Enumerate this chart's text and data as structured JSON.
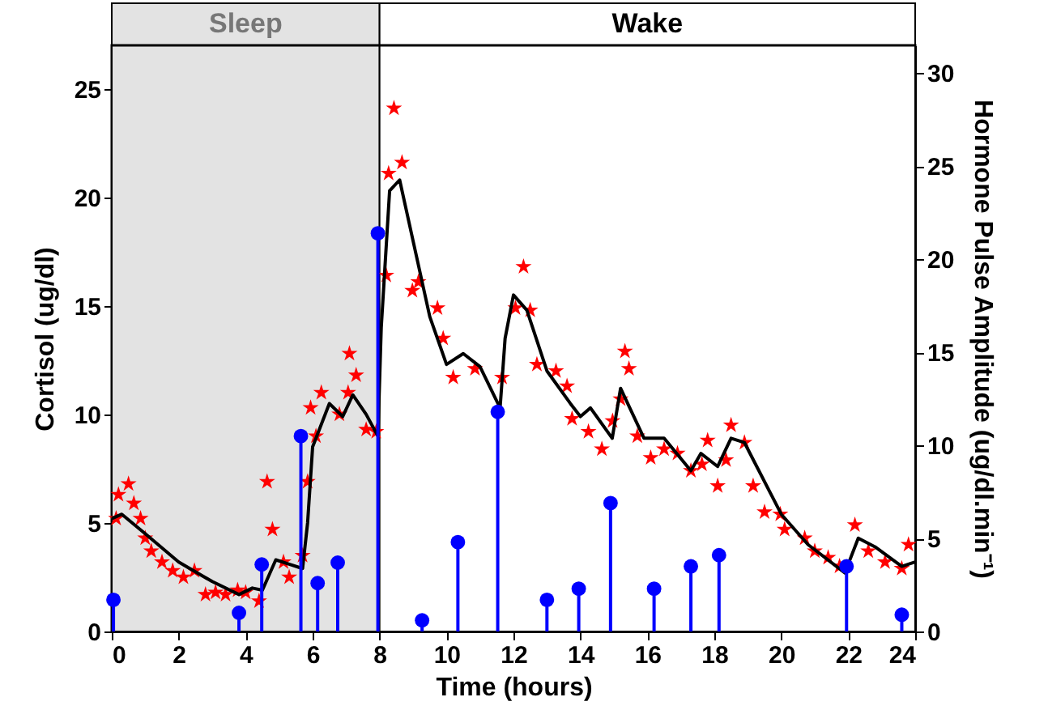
{
  "chart_data": {
    "type": "scatter",
    "xlabel": "Time (hours)",
    "ylabel": "Cortisol (ug/dl)",
    "y2label": "Hormone Pulse Amplitude (ug/dl.min⁻¹)",
    "xlim": [
      0,
      24
    ],
    "xticks": [
      0,
      2,
      4,
      6,
      8,
      10,
      12,
      14,
      16,
      18,
      20,
      22,
      24
    ],
    "ylim": [
      0,
      27
    ],
    "yticks": [
      0,
      5,
      10,
      15,
      20,
      25
    ],
    "y2lim": [
      0,
      31.5
    ],
    "y2ticks": [
      0,
      5,
      10,
      15,
      20,
      25,
      30
    ],
    "bands": [
      {
        "axis": "x",
        "from": 0,
        "to": 8,
        "label": "Sleep",
        "color": "#e3e3e3"
      },
      {
        "axis": "x",
        "from": 8,
        "to": 24,
        "label": "Wake",
        "color": "#ffffff"
      }
    ],
    "series": [
      {
        "color": "#ff0000",
        "marker": "star",
        "x": [
          0.13,
          0.2,
          0.5,
          0.66,
          0.86,
          1.0,
          1.18,
          1.5,
          1.82,
          2.14,
          2.47,
          2.8,
          3.1,
          3.4,
          3.76,
          4.0,
          4.4,
          4.64,
          4.8,
          5.13,
          5.3,
          5.7,
          5.85,
          5.94,
          6.1,
          6.26,
          6.8,
          7.06,
          7.1,
          7.3,
          7.6,
          7.9,
          8.2,
          8.27,
          8.43,
          8.67,
          8.98,
          9.16,
          9.73,
          9.9,
          10.2,
          10.85,
          11.66,
          12.06,
          12.3,
          12.5,
          12.7,
          13.27,
          13.6,
          13.75,
          14.24,
          14.64,
          14.96,
          15.2,
          15.33,
          15.45,
          15.7,
          16.1,
          16.5,
          16.9,
          17.3,
          17.63,
          17.8,
          18.1,
          18.35,
          18.5,
          18.9,
          19.16,
          19.5,
          19.97,
          20.1,
          20.7,
          21.0,
          21.4,
          21.74,
          22.2,
          22.6,
          23.1,
          23.6,
          23.8
        ],
        "values": [
          5.2,
          6.3,
          6.8,
          5.9,
          5.2,
          4.3,
          3.7,
          3.2,
          2.8,
          2.5,
          2.8,
          1.7,
          1.8,
          1.7,
          1.9,
          1.8,
          1.4,
          6.9,
          4.7,
          3.2,
          2.5,
          3.5,
          6.9,
          10.3,
          9.0,
          11.0,
          10.0,
          11.0,
          12.8,
          11.8,
          9.3,
          9.2,
          16.4,
          21.1,
          24.1,
          21.6,
          15.7,
          16.1,
          14.9,
          13.5,
          11.7,
          12.1,
          11.7,
          14.9,
          16.8,
          14.8,
          12.3,
          12.0,
          11.3,
          9.8,
          9.2,
          8.4,
          9.7,
          10.7,
          12.9,
          12.1,
          9.0,
          8.0,
          8.4,
          8.2,
          7.4,
          7.7,
          8.8,
          6.7,
          7.9,
          9.5,
          8.7,
          6.7,
          5.5,
          5.4,
          4.7,
          4.3,
          3.7,
          3.4,
          3.0,
          4.9,
          3.7,
          3.2,
          2.9,
          4.0
        ]
      },
      {
        "type": "line",
        "color": "#000000",
        "x": [
          0,
          0.3,
          1,
          2,
          3,
          3.8,
          4.2,
          4.5,
          4.9,
          5.3,
          5.7,
          5.85,
          6.0,
          6.5,
          6.9,
          7.2,
          7.6,
          7.95,
          8.05,
          8.3,
          8.6,
          9.0,
          9.5,
          10.0,
          10.5,
          11.0,
          11.6,
          11.75,
          12.0,
          12.4,
          13.0,
          13.7,
          14.0,
          14.3,
          14.95,
          15.2,
          15.9,
          16.5,
          17.3,
          17.6,
          18.1,
          18.5,
          18.9,
          20.0,
          20.8,
          21.9,
          22.3,
          22.8,
          23.6,
          24
        ],
        "values": [
          5.2,
          5.4,
          4.5,
          3.2,
          2.3,
          1.7,
          2.0,
          1.9,
          3.3,
          3.1,
          2.9,
          5.0,
          8.5,
          10.5,
          9.9,
          10.9,
          10.0,
          9.0,
          14.0,
          20.3,
          20.8,
          18.0,
          14.5,
          12.3,
          12.8,
          12.2,
          10.3,
          13.5,
          15.5,
          14.8,
          12.0,
          10.5,
          9.9,
          10.3,
          8.9,
          11.2,
          8.9,
          8.9,
          7.4,
          8.2,
          7.6,
          8.9,
          8.7,
          5.4,
          4.0,
          2.7,
          4.3,
          3.9,
          3.0,
          3.2
        ]
      },
      {
        "type": "lollipop",
        "axis": "y2",
        "color": "#0000ff",
        "x": [
          0.05,
          3.8,
          4.48,
          5.65,
          6.15,
          6.75,
          7.95,
          9.27,
          10.34,
          11.53,
          13.0,
          13.95,
          14.9,
          16.2,
          17.3,
          18.14,
          21.95,
          23.6
        ],
        "values": [
          1.7,
          1.0,
          3.6,
          10.5,
          2.6,
          3.7,
          21.4,
          0.6,
          4.8,
          11.8,
          1.7,
          2.3,
          6.9,
          2.3,
          3.5,
          4.1,
          3.5,
          0.9
        ]
      }
    ]
  }
}
